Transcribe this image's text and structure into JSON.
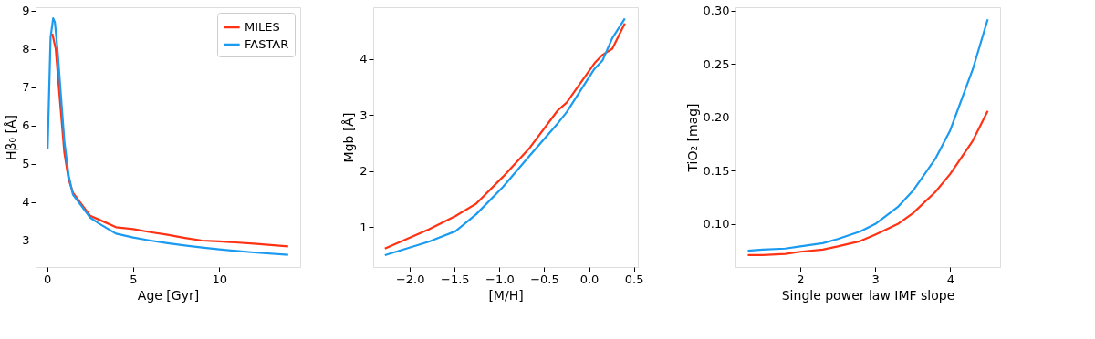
{
  "chart_data": [
    {
      "type": "line",
      "xlabel": "Age [Gyr]",
      "ylabel": "Hβ₀ [Å]",
      "xlim": [
        -0.67,
        14.7
      ],
      "ylim": [
        2.31,
        9.09
      ],
      "xticks": [
        0,
        5,
        10
      ],
      "yticks": [
        3,
        4,
        5,
        6,
        7,
        8,
        9
      ],
      "legend": "top right",
      "grid": false,
      "marker": "none",
      "line_style": "solid",
      "series": [
        {
          "name": "MILES",
          "color": "#ff3214",
          "x": [
            0.3,
            0.5,
            0.7,
            1.0,
            1.25,
            1.5,
            2,
            2.5,
            3,
            4,
            5,
            6,
            7,
            8,
            9,
            10,
            12,
            14
          ],
          "values": [
            8.4,
            8.0,
            6.9,
            5.3,
            4.6,
            4.25,
            3.95,
            3.65,
            3.55,
            3.35,
            3.3,
            3.22,
            3.15,
            3.07,
            3.0,
            2.98,
            2.92,
            2.85
          ]
        },
        {
          "name": "FASTAR",
          "color": "#1a9bf0",
          "x": [
            0.03,
            0.1,
            0.2,
            0.35,
            0.45,
            0.6,
            0.8,
            1.0,
            1.25,
            1.5,
            2,
            2.5,
            3,
            4,
            5,
            6,
            7,
            8,
            9,
            10,
            12,
            14
          ],
          "values": [
            5.4,
            6.6,
            8.3,
            8.8,
            8.7,
            8.0,
            6.8,
            5.6,
            4.7,
            4.2,
            3.9,
            3.6,
            3.45,
            3.18,
            3.08,
            3.0,
            2.93,
            2.87,
            2.82,
            2.77,
            2.69,
            2.63
          ]
        }
      ]
    },
    {
      "type": "line",
      "xlabel": "[M/H]",
      "ylabel": "Mgb [Å]",
      "xlim": [
        -2.41,
        0.545
      ],
      "ylim": [
        0.29,
        4.92
      ],
      "xticks": [
        {
          "value": -2.0,
          "label": "−2.0"
        },
        {
          "value": -1.5,
          "label": "−1.5"
        },
        {
          "value": -1.0,
          "label": "−1.0"
        },
        {
          "value": -0.5,
          "label": "−0.5"
        },
        {
          "value": 0.0,
          "label": "0.0"
        },
        {
          "value": 0.5,
          "label": "0.5"
        }
      ],
      "yticks": [
        1,
        2,
        3,
        4
      ],
      "legend": false,
      "grid": false,
      "marker": "none",
      "line_style": "solid",
      "series": [
        {
          "color": "#ff3214",
          "x": [
            -2.28,
            -1.79,
            -1.49,
            -1.26,
            -0.96,
            -0.66,
            -0.35,
            -0.25,
            0.06,
            0.15,
            0.26,
            0.4
          ],
          "values": [
            0.62,
            0.96,
            1.2,
            1.42,
            1.9,
            2.42,
            3.08,
            3.22,
            3.92,
            4.07,
            4.18,
            4.63
          ]
        },
        {
          "color": "#1a9bf0",
          "x": [
            -2.28,
            -1.79,
            -1.49,
            -1.26,
            -0.96,
            -0.66,
            -0.35,
            -0.25,
            0.06,
            0.15,
            0.26,
            0.4
          ],
          "values": [
            0.5,
            0.74,
            0.93,
            1.23,
            1.72,
            2.28,
            2.85,
            3.05,
            3.82,
            3.97,
            4.37,
            4.72
          ]
        }
      ]
    },
    {
      "type": "line",
      "xlabel": "Single power law IMF slope",
      "ylabel": "TiO₂ [mag]",
      "xlim": [
        1.136,
        4.665
      ],
      "ylim": [
        0.0597,
        0.3033
      ],
      "xticks": [
        2,
        3,
        4
      ],
      "yticks": [
        {
          "value": 0.1,
          "label": "0.10"
        },
        {
          "value": 0.15,
          "label": "0.15"
        },
        {
          "value": 0.2,
          "label": "0.20"
        },
        {
          "value": 0.25,
          "label": "0.25"
        },
        {
          "value": 0.3,
          "label": "0.30"
        }
      ],
      "legend": false,
      "grid": false,
      "marker": "none",
      "line_style": "solid",
      "series": [
        {
          "color": "#ff3214",
          "x": [
            1.3,
            1.5,
            1.8,
            2.0,
            2.3,
            2.5,
            2.8,
            3.0,
            3.3,
            3.5,
            3.8,
            4.0,
            4.3,
            4.5
          ],
          "values": [
            0.071,
            0.071,
            0.072,
            0.074,
            0.076,
            0.079,
            0.084,
            0.09,
            0.1,
            0.11,
            0.13,
            0.147,
            0.178,
            0.206
          ]
        },
        {
          "color": "#1a9bf0",
          "x": [
            1.3,
            1.5,
            1.8,
            2.0,
            2.3,
            2.5,
            2.8,
            3.0,
            3.3,
            3.5,
            3.8,
            4.0,
            4.3,
            4.5
          ],
          "values": [
            0.075,
            0.076,
            0.077,
            0.079,
            0.082,
            0.086,
            0.093,
            0.1,
            0.116,
            0.131,
            0.161,
            0.188,
            0.245,
            0.292
          ]
        }
      ]
    }
  ]
}
